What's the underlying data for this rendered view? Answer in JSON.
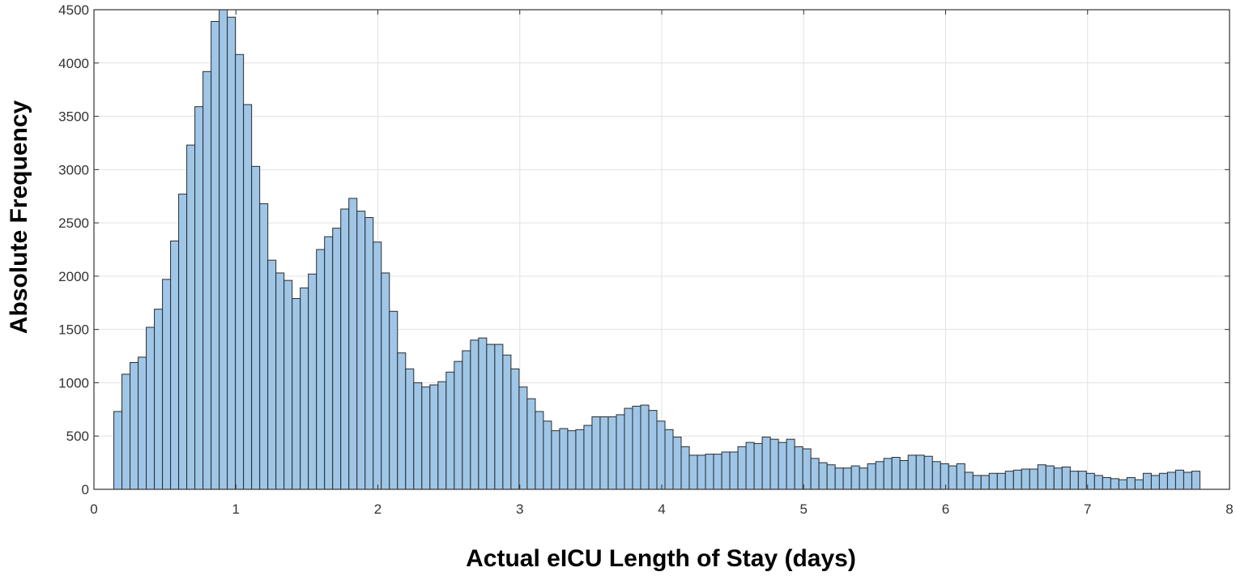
{
  "chart_data": {
    "type": "bar",
    "title": "",
    "xlabel": "Actual eICU Length of Stay (days)",
    "ylabel": "Absolute Frequency",
    "xlim": [
      0,
      8
    ],
    "ylim": [
      0,
      4500
    ],
    "xticks": [
      "0",
      "1",
      "2",
      "3",
      "4",
      "5",
      "6",
      "7",
      "8"
    ],
    "yticks": [
      "0",
      "500",
      "1000",
      "1500",
      "2000",
      "2500",
      "3000",
      "3500",
      "4000",
      "4500"
    ],
    "grid": true,
    "bin_start": 0.14,
    "bin_width": 0.0571,
    "values": [
      730,
      1080,
      1190,
      1240,
      1520,
      1690,
      1970,
      2330,
      2770,
      3230,
      3590,
      3920,
      4390,
      4500,
      4430,
      4080,
      3610,
      3030,
      2680,
      2150,
      2030,
      1960,
      1790,
      1890,
      2020,
      2250,
      2370,
      2450,
      2630,
      2730,
      2610,
      2550,
      2320,
      2030,
      1670,
      1280,
      1130,
      1000,
      960,
      980,
      1010,
      1100,
      1200,
      1300,
      1400,
      1420,
      1360,
      1360,
      1260,
      1130,
      960,
      850,
      730,
      640,
      550,
      570,
      550,
      560,
      600,
      680,
      680,
      680,
      700,
      760,
      780,
      790,
      740,
      640,
      560,
      490,
      400,
      320,
      320,
      330,
      330,
      350,
      350,
      400,
      440,
      430,
      490,
      470,
      440,
      470,
      400,
      380,
      290,
      250,
      230,
      200,
      200,
      220,
      200,
      240,
      260,
      290,
      300,
      270,
      320,
      320,
      310,
      260,
      240,
      220,
      240,
      160,
      130,
      130,
      150,
      150,
      170,
      180,
      190,
      190,
      230,
      220,
      200,
      210,
      170,
      170,
      150,
      130,
      110,
      100,
      90,
      110,
      90,
      150,
      130,
      150,
      160,
      180,
      160,
      170
    ],
    "bar_color": "#9fc6e7",
    "edge_color": "#2b2b2b"
  }
}
